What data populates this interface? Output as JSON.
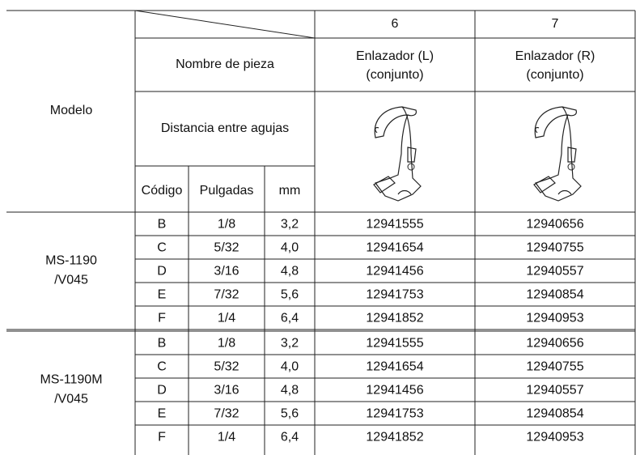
{
  "header": {
    "part_numbers": [
      "6",
      "7"
    ],
    "part_name_label": "Nombre de pieza",
    "parts": [
      [
        "Enlazador (L)",
        "(conjunto)"
      ],
      [
        "Enlazador (R)",
        "(conjunto)"
      ]
    ],
    "model_label": "Modelo",
    "distance_label": "Distancia entre agujas",
    "code_label": "Código",
    "inch_label": "Pulgadas",
    "mm_label": "mm"
  },
  "groups": [
    {
      "model": [
        "MS-1190",
        "/V045"
      ],
      "rows": [
        [
          "B",
          "1/8",
          "3,2",
          "12941555",
          "12940656"
        ],
        [
          "C",
          "5/32",
          "4,0",
          "12941654",
          "12940755"
        ],
        [
          "D",
          "3/16",
          "4,8",
          "12941456",
          "12940557"
        ],
        [
          "E",
          "7/32",
          "5,6",
          "12941753",
          "12940854"
        ],
        [
          "F",
          "1/4",
          "6,4",
          "12941852",
          "12940953"
        ]
      ]
    },
    {
      "model": [
        "MS-1190M",
        "/V045"
      ],
      "rows": [
        [
          "B",
          "1/8",
          "3,2",
          "12941555",
          "12940656"
        ],
        [
          "C",
          "5/32",
          "4,0",
          "12941654",
          "12940755"
        ],
        [
          "D",
          "3/16",
          "4,8",
          "12941456",
          "12940557"
        ],
        [
          "E",
          "7/32",
          "5,6",
          "12941753",
          "12940854"
        ],
        [
          "F",
          "1/4",
          "6,4",
          "12941852",
          "12940953"
        ]
      ]
    }
  ]
}
